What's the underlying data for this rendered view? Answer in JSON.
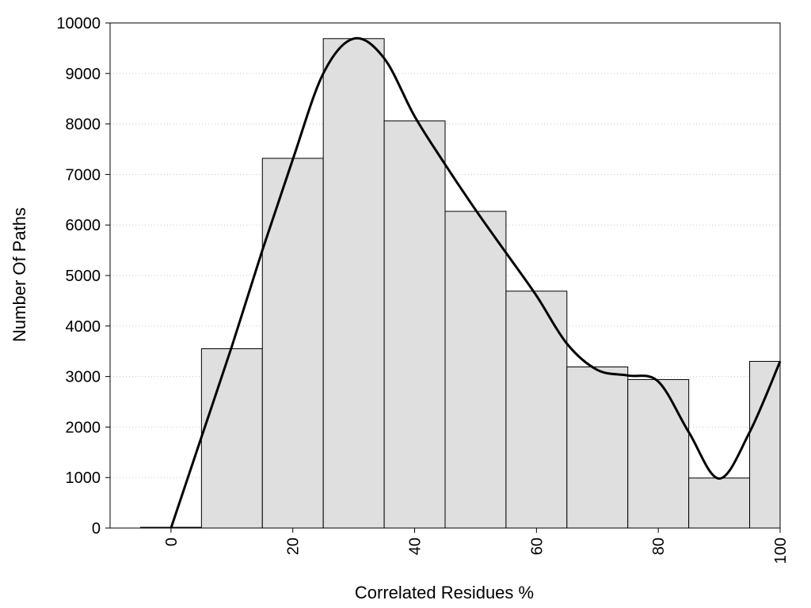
{
  "chart_data": {
    "type": "bar",
    "title": "",
    "xlabel": "Correlated Residues %",
    "ylabel": "Number Of Paths",
    "x_ticks": [
      0,
      20,
      40,
      60,
      80,
      100
    ],
    "y_ticks": [
      0,
      1000,
      2000,
      3000,
      4000,
      5000,
      6000,
      7000,
      8000,
      9000,
      10000
    ],
    "xlim": [
      -10,
      100
    ],
    "ylim": [
      0,
      10000
    ],
    "grid": "horizontal dotted",
    "legend": "none",
    "bars": {
      "bin_width": 10,
      "centers": [
        0,
        10,
        20,
        30,
        40,
        50,
        60,
        70,
        80,
        90,
        100
      ],
      "values": [
        15,
        3550,
        7320,
        9690,
        8060,
        6270,
        4690,
        3190,
        2940,
        990,
        3300
      ]
    },
    "smooth_curve": {
      "x": [
        0,
        5,
        10,
        15,
        20,
        25,
        30,
        35,
        40,
        45,
        50,
        55,
        60,
        65,
        70,
        75,
        80,
        85,
        90,
        95,
        100
      ],
      "y": [
        0,
        1800,
        3600,
        5500,
        7300,
        9000,
        9690,
        9300,
        8150,
        7200,
        6300,
        5450,
        4600,
        3650,
        3130,
        3020,
        2900,
        1900,
        980,
        1900,
        3300
      ]
    },
    "colors": {
      "bar_fill": "#dfdfdf",
      "bar_stroke": "#000000",
      "curve": "#000000",
      "grid": "#c8c8c8"
    }
  }
}
